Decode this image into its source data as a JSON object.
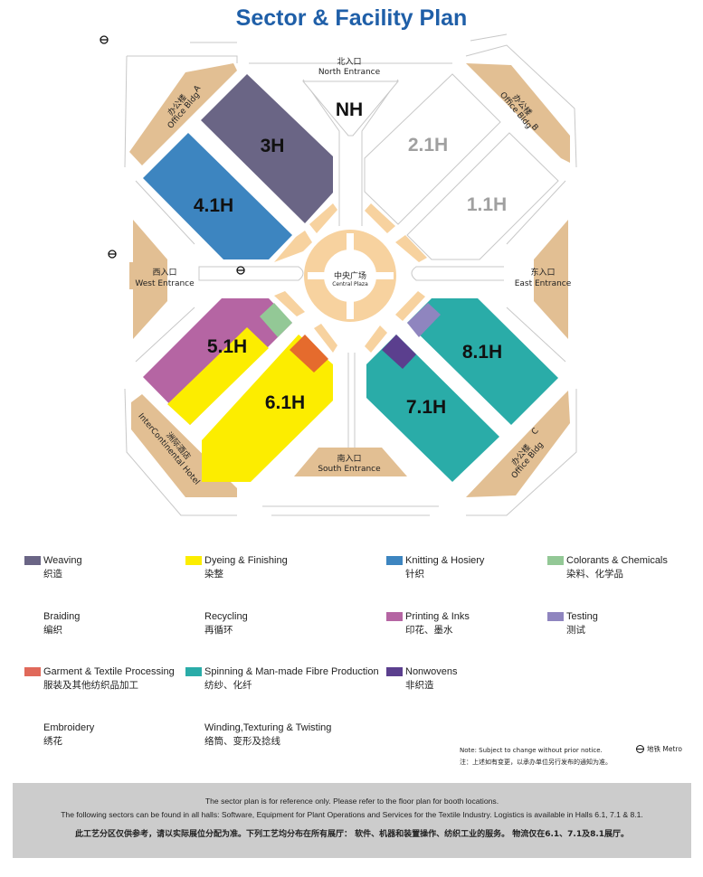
{
  "title": "Sector & Facility Plan",
  "map": {
    "halls": [
      {
        "id": "NH",
        "label": "NH",
        "color": "#ffffff"
      },
      {
        "id": "3H",
        "label": "3H",
        "color": "#6a6585"
      },
      {
        "id": "4.1H",
        "label": "4.1H",
        "color": "#3d85c0"
      },
      {
        "id": "2.1H",
        "label": "2.1H",
        "color": "#ffffff"
      },
      {
        "id": "1.1H",
        "label": "1.1H",
        "color": "#ffffff"
      },
      {
        "id": "5.1H",
        "label": "5.1H",
        "color": "#b565a3"
      },
      {
        "id": "6.1H",
        "label": "6.1H",
        "color": "#fced00"
      },
      {
        "id": "7.1H",
        "label": "7.1H",
        "color": "#2aaca8"
      },
      {
        "id": "8.1H",
        "label": "8.1H",
        "color": "#2aaca8"
      }
    ],
    "entrances": {
      "north": {
        "zh": "北入口",
        "en": "North Entrance"
      },
      "south": {
        "zh": "南入口",
        "en": "South Entrance"
      },
      "west": {
        "zh": "西入口",
        "en": "West Entrance"
      },
      "east": {
        "zh": "东入口",
        "en": "East Entrance"
      }
    },
    "central_plaza": {
      "zh": "中央广场",
      "en": "Central Plaza"
    },
    "office_a": {
      "zh": "办公楼",
      "en": "Office Bldg",
      "letter": "A"
    },
    "office_b": {
      "zh": "办公楼",
      "en": "Office Bldg",
      "letter": "B"
    },
    "office_c": {
      "zh": "办公楼",
      "en": "Office Bldg",
      "letter": "C"
    },
    "hotel": {
      "zh": "洲际酒店",
      "en": "InterContinental Hotel"
    },
    "colors": {
      "building": "#e2bf93",
      "plaza": "#f7d29f",
      "road": "#c8c8c8",
      "inactive_label": "#a0a0a0"
    }
  },
  "legend": [
    {
      "en": "Weaving",
      "zh": "织造",
      "color": "#6a6585"
    },
    {
      "en": "Dyeing & Finishing",
      "zh": "染整",
      "color": "#fced00"
    },
    {
      "en": "Knitting & Hosiery",
      "zh": "针织",
      "color": "#3d85c0"
    },
    {
      "en": "Colorants & Chemicals",
      "zh": "染料、化学品",
      "color": "#93c896"
    },
    {
      "en": "Braiding",
      "zh": "编织",
      "color": null
    },
    {
      "en": "Recycling",
      "zh": "再循环",
      "color": null
    },
    {
      "en": "Printing & Inks",
      "zh": "印花、墨水",
      "color": "#b565a3"
    },
    {
      "en": "Testing",
      "zh": "测试",
      "color": "#8f85bf"
    },
    {
      "en": "Garment & Textile Processing",
      "zh": "服装及其他纺织品加工",
      "color": "#e0695a"
    },
    {
      "en": "Spinning & Man-made Fibre Production",
      "zh": "纺纱、化纤",
      "color": "#2aaca8"
    },
    {
      "en": "Nonwovens",
      "zh": "非织造",
      "color": "#5b3f8e"
    },
    {
      "en": "Embroidery",
      "zh": "绣花",
      "color": null
    },
    {
      "en": "Winding,Texturing & Twisting",
      "zh": "络筒、变形及捻线",
      "color": null
    }
  ],
  "note": {
    "en": "Note: Subject to change without prior notice.",
    "zh": "注：上述如有变更，以承办单位另行发布的通知为准。"
  },
  "metro_legend": {
    "icon": "metro-icon",
    "label": "地铁 Metro"
  },
  "footer": {
    "line1": "The sector plan is for reference only. Please refer to the floor plan for booth locations.",
    "line2": "The following sectors can be found in all halls: Software, Equipment for Plant Operations and Services for the Textile Industry. Logistics is available in Halls 6.1, 7.1 & 8.1.",
    "line3": "此工艺分区仅供参考，请以实际展位分配为准。下列工艺均分布在所有展厅： 软件、机器和装置操作、纺织工业的服务。 物流仅在6.1、7.1及8.1展厅。"
  }
}
